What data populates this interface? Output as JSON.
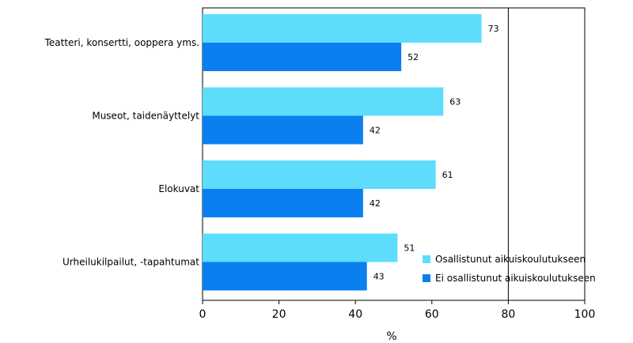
{
  "chart_data": {
    "type": "bar",
    "orientation": "horizontal",
    "categories": [
      "Teatteri, konsertti, ooppera yms.",
      "Museot, taidenäyttelyt",
      "Elokuvat",
      "Urheilukilpailut, -tapahtumat"
    ],
    "series": [
      {
        "name": "Osallistunut aikuiskoulutukseen",
        "values": [
          73,
          63,
          61,
          51
        ],
        "color": "#5ddcfc"
      },
      {
        "name": "Ei osallistunut aikuiskoulutukseen",
        "values": [
          52,
          42,
          42,
          43
        ],
        "color": "#0a7ff0"
      }
    ],
    "xlabel": "%",
    "xlim": [
      0,
      100
    ],
    "xticks": [
      "0",
      "20",
      "40",
      "60",
      "80",
      "100"
    ],
    "grid": "vertical lines at 80 and 100",
    "legend": "bottom-right, inside plot",
    "data_labels": true
  }
}
